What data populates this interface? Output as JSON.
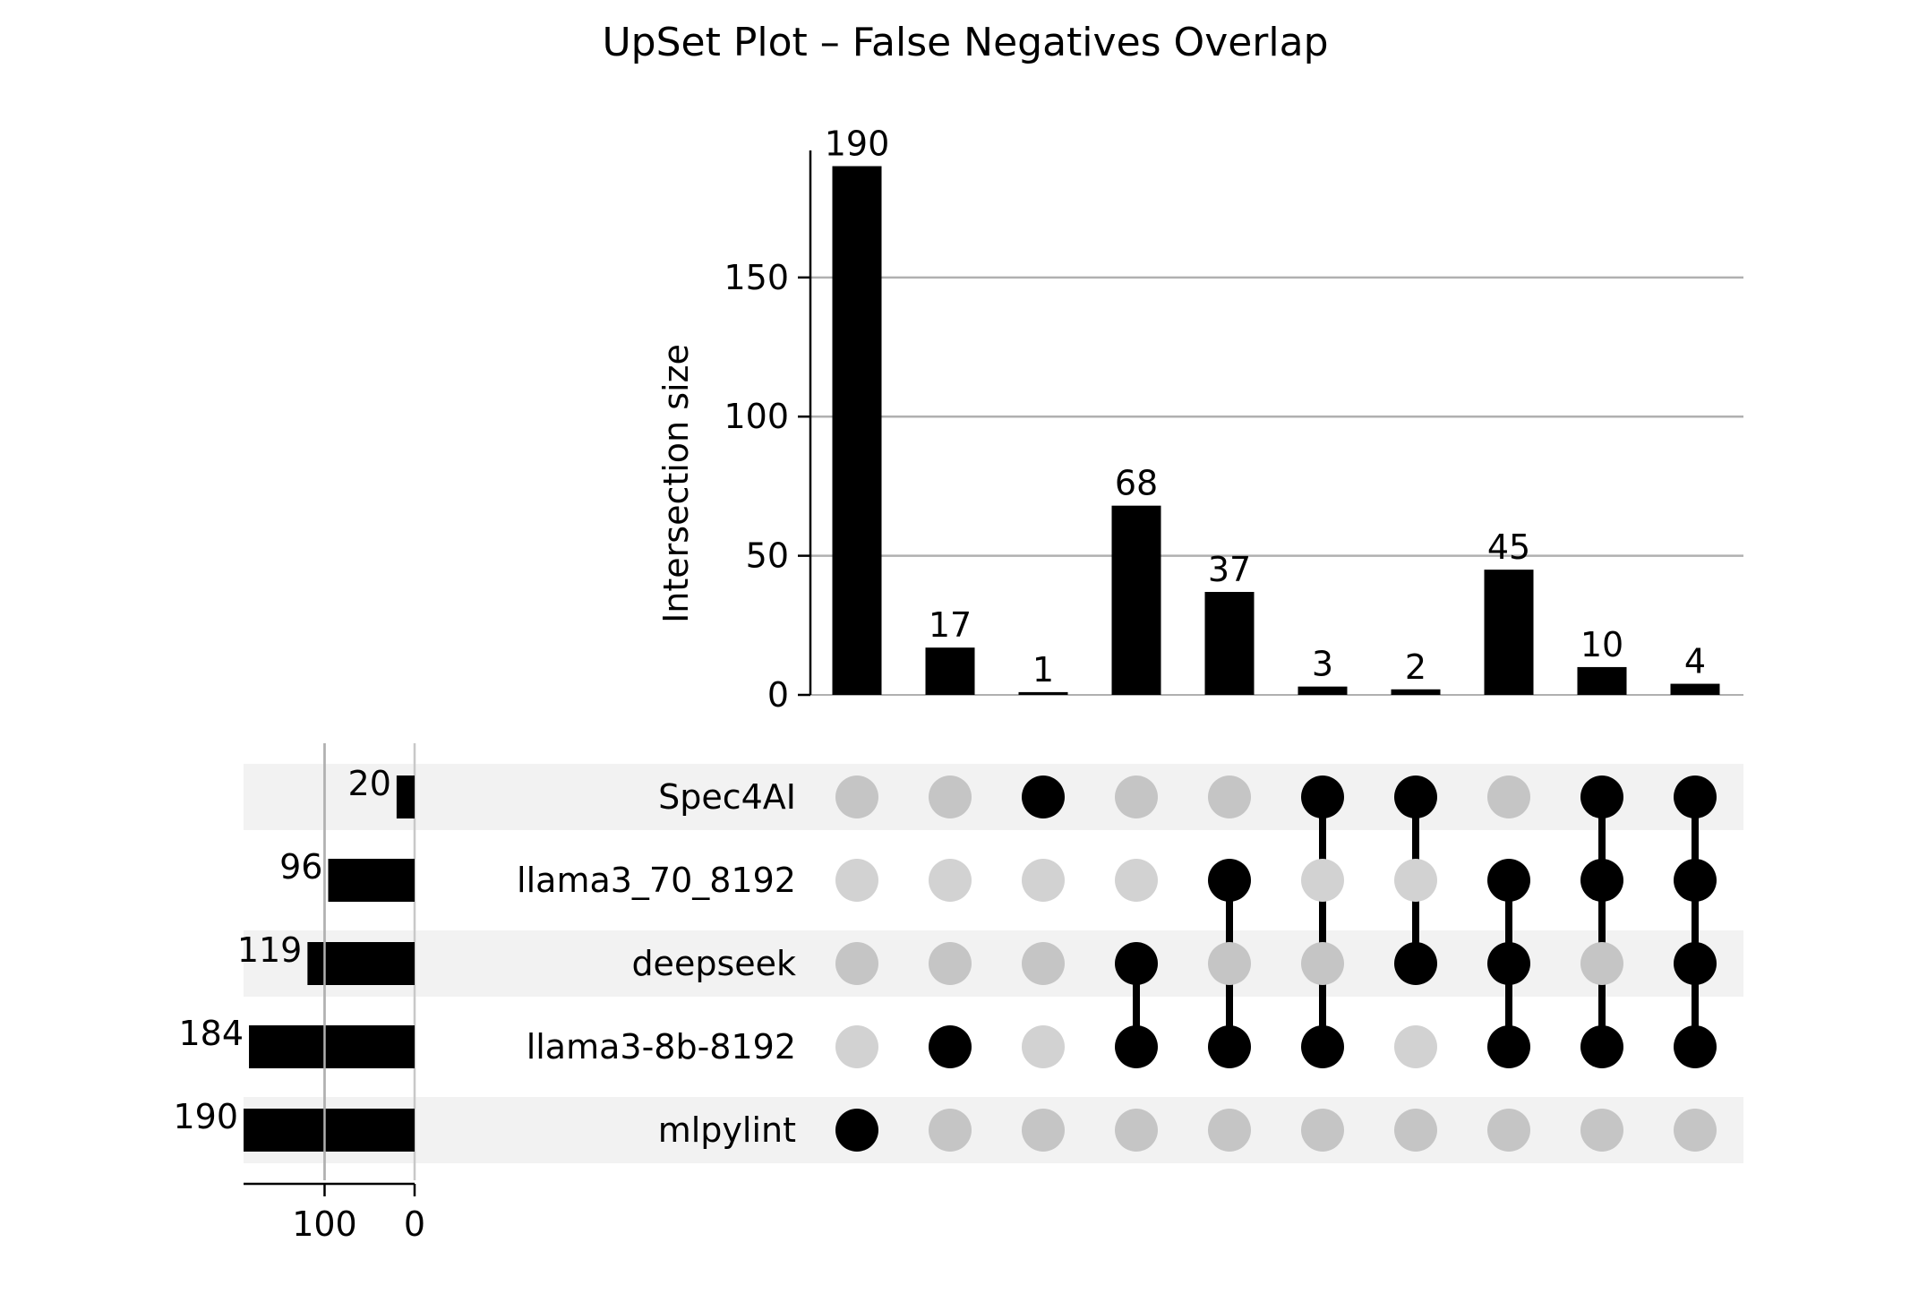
{
  "chart_data": {
    "type": "upset",
    "title": "UpSet Plot – False Negatives Overlap",
    "intersections": {
      "ylabel": "Intersection size",
      "ylim": [
        0,
        195
      ],
      "yticks": [
        0,
        50,
        100,
        150
      ],
      "ytick_labels": [
        "0",
        "50",
        "100",
        "150"
      ],
      "grid": true,
      "columns": [
        {
          "members": [
            "mlpylint"
          ],
          "value": 190,
          "label": "190"
        },
        {
          "members": [
            "llama3-8b-8192"
          ],
          "value": 17,
          "label": "17"
        },
        {
          "members": [
            "Spec4AI"
          ],
          "value": 1,
          "label": "1"
        },
        {
          "members": [
            "deepseek",
            "llama3-8b-8192"
          ],
          "value": 68,
          "label": "68"
        },
        {
          "members": [
            "llama3_70_8192",
            "llama3-8b-8192"
          ],
          "value": 37,
          "label": "37"
        },
        {
          "members": [
            "Spec4AI",
            "llama3-8b-8192"
          ],
          "value": 3,
          "label": "3"
        },
        {
          "members": [
            "Spec4AI",
            "deepseek"
          ],
          "value": 2,
          "label": "2"
        },
        {
          "members": [
            "llama3_70_8192",
            "deepseek",
            "llama3-8b-8192"
          ],
          "value": 45,
          "label": "45"
        },
        {
          "members": [
            "Spec4AI",
            "llama3_70_8192",
            "llama3-8b-8192"
          ],
          "value": 10,
          "label": "10"
        },
        {
          "members": [
            "Spec4AI",
            "llama3_70_8192",
            "deepseek",
            "llama3-8b-8192"
          ],
          "value": 4,
          "label": "4"
        }
      ]
    },
    "sets": [
      {
        "name": "Spec4AI",
        "size": 20,
        "label": "20"
      },
      {
        "name": "llama3_70_8192",
        "size": 96,
        "label": "96"
      },
      {
        "name": "deepseek",
        "size": 119,
        "label": "119"
      },
      {
        "name": "llama3-8b-8192",
        "size": 184,
        "label": "184"
      },
      {
        "name": "mlpylint",
        "size": 190,
        "label": "190"
      }
    ],
    "set_size_axis": {
      "xticks": [
        100,
        0
      ],
      "xtick_labels": [
        "100",
        "0"
      ],
      "xlim": [
        0,
        190
      ],
      "reversed": true
    },
    "colors": {
      "bar": "#000000",
      "active_dot": "#000000",
      "inactive_dot_dark": "#c5c5c5",
      "inactive_dot_light": "#d2d2d2",
      "row_shade": "#f2f2f2",
      "grid": "#b0b0b0"
    }
  }
}
